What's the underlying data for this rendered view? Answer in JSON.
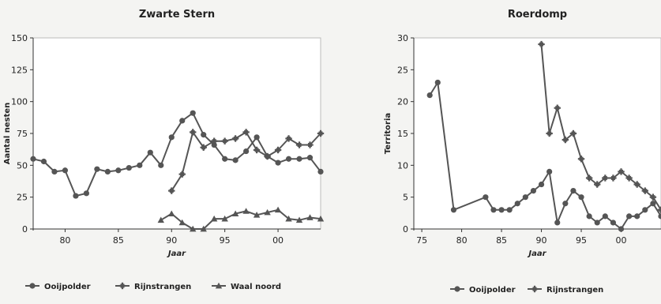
{
  "chart_data": [
    {
      "type": "line",
      "title": "Zwarte Stern",
      "xlabel": "Jaar",
      "ylabel": "Aantal nesten",
      "xlim": [
        1977,
        2004
      ],
      "ylim": [
        0,
        150
      ],
      "xticks": [
        1980,
        1985,
        1990,
        1995,
        2000
      ],
      "xtick_labels": [
        "80",
        "85",
        "90",
        "95",
        "00"
      ],
      "yticks": [
        0,
        25,
        50,
        75,
        100,
        125,
        150
      ],
      "ytick_labels": [
        "0",
        "25",
        "50",
        "75",
        "100",
        "125",
        "150"
      ],
      "grid": false,
      "legend_position": "bottom",
      "series": [
        {
          "name": "Ooijpolder",
          "marker": "circle",
          "x": [
            1977,
            1978,
            1979,
            1980,
            1981,
            1982,
            1983,
            1984,
            1985,
            1986,
            1987,
            1988,
            1989,
            1990,
            1991,
            1992,
            1993,
            1994,
            1995,
            1996,
            1997,
            1998,
            1999,
            2000,
            2001,
            2002,
            2003,
            2004
          ],
          "y": [
            55,
            53,
            45,
            46,
            26,
            28,
            47,
            45,
            46,
            48,
            50,
            60,
            50,
            72,
            85,
            91,
            74,
            66,
            55,
            54,
            61,
            72,
            57,
            52,
            55,
            55,
            56,
            45
          ]
        },
        {
          "name": "Rijnstrangen",
          "marker": "star",
          "x": [
            1990,
            1991,
            1992,
            1993,
            1994,
            1995,
            1996,
            1997,
            1998,
            1999,
            2000,
            2001,
            2002,
            2003,
            2004
          ],
          "y": [
            30,
            43,
            76,
            64,
            69,
            69,
            71,
            76,
            62,
            57,
            62,
            71,
            66,
            66,
            75
          ]
        },
        {
          "name": "Waal noord",
          "marker": "triangle",
          "x": [
            1989,
            1990,
            1991,
            1992,
            1993,
            1994,
            1995,
            1996,
            1997,
            1998,
            1999,
            2000,
            2001,
            2002,
            2003,
            2004
          ],
          "y": [
            7,
            12,
            5,
            0,
            0,
            8,
            8,
            12,
            14,
            11,
            13,
            15,
            8,
            7,
            9,
            8
          ]
        }
      ]
    },
    {
      "type": "line",
      "title": "Roerdomp",
      "xlabel": "Jaar",
      "ylabel": "Territoria",
      "xlim": [
        1974,
        2005
      ],
      "ylim": [
        0,
        30
      ],
      "xticks": [
        1975,
        1980,
        1985,
        1990,
        1995,
        2000
      ],
      "xtick_labels": [
        "75",
        "80",
        "85",
        "90",
        "95",
        "00"
      ],
      "yticks": [
        0,
        5,
        10,
        15,
        20,
        25,
        30
      ],
      "ytick_labels": [
        "0",
        "5",
        "10",
        "15",
        "20",
        "25",
        "30"
      ],
      "grid": false,
      "legend_position": "bottom",
      "series": [
        {
          "name": "Ooijpolder",
          "marker": "circle",
          "x": [
            1976,
            1977,
            1979,
            1983,
            1984,
            1985,
            1986,
            1987,
            1988,
            1989,
            1990,
            1991,
            1992,
            1993,
            1994,
            1995,
            1996,
            1997,
            1998,
            1999,
            2000,
            2001,
            2002,
            2003,
            2004,
            2005
          ],
          "y": [
            21,
            23,
            3,
            5,
            3,
            3,
            3,
            4,
            5,
            6,
            7,
            9,
            1,
            4,
            6,
            5,
            2,
            1,
            2,
            1,
            0,
            2,
            2,
            3,
            4,
            2
          ]
        },
        {
          "name": "Rijnstrangen",
          "marker": "star",
          "x": [
            1990,
            1991,
            1992,
            1993,
            1994,
            1995,
            1996,
            1997,
            1998,
            1999,
            2000,
            2001,
            2002,
            2003,
            2004,
            2005
          ],
          "y": [
            29,
            15,
            19,
            14,
            15,
            11,
            8,
            7,
            8,
            8,
            9,
            8,
            7,
            6,
            5,
            3
          ]
        }
      ]
    }
  ]
}
